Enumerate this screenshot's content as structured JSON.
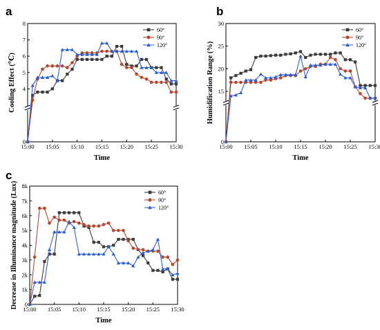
{
  "figure": {
    "panel_labels": [
      "a",
      "b",
      "c"
    ]
  },
  "colors": {
    "s60": "#3a3a3a",
    "s90": "#b5452f",
    "s120": "#2b5fd1"
  },
  "chart_data": [
    {
      "type": "line",
      "panel": "a",
      "title": "",
      "xlabel": "Time",
      "ylabel": "Cooling Effect (℃)",
      "ylim": [
        0,
        8
      ],
      "y_break": "axis break between 0 and 3",
      "yticks": [
        "0",
        "4",
        "5",
        "6",
        "7",
        "8"
      ],
      "ytick_values": [
        0,
        4,
        5,
        6,
        7,
        8
      ],
      "xtick_labels": [
        "15:00",
        "15:05",
        "15:10",
        "15:15",
        "15:20",
        "15:25",
        "15:30"
      ],
      "x": [
        0,
        1,
        2,
        3,
        4,
        5,
        6,
        7,
        8,
        9,
        10,
        11,
        12,
        13,
        14,
        15,
        16,
        17,
        18,
        19,
        20,
        21,
        22,
        23,
        24,
        25,
        26,
        27,
        28,
        29,
        30
      ],
      "legend_position": "top-right",
      "series": [
        {
          "name": "60°",
          "color_key": "s60",
          "marker": "square",
          "values": [
            0,
            3.6,
            3.8,
            3.8,
            3.8,
            4.0,
            4.5,
            4.5,
            4.9,
            5.2,
            5.8,
            5.8,
            5.8,
            5.8,
            5.8,
            5.8,
            6.0,
            6.0,
            6.6,
            6.6,
            5.5,
            5.4,
            5.4,
            5.8,
            5.8,
            5.3,
            5.3,
            5.3,
            4.6,
            4.3,
            4.3
          ]
        },
        {
          "name": "90°",
          "color_key": "s90",
          "marker": "circle",
          "values": [
            0,
            3.3,
            4.6,
            5.2,
            5.4,
            5.4,
            5.4,
            5.4,
            5.3,
            5.6,
            6.0,
            6.2,
            6.2,
            6.2,
            6.2,
            6.3,
            6.3,
            6.3,
            6.3,
            5.5,
            5.3,
            5.3,
            4.9,
            4.7,
            4.6,
            4.4,
            4.4,
            4.4,
            4.4,
            3.8,
            3.8
          ]
        },
        {
          "name": "120°",
          "color_key": "s120",
          "marker": "triangle",
          "values": [
            0,
            4.2,
            4.7,
            4.7,
            4.7,
            4.8,
            4.5,
            6.4,
            6.4,
            6.4,
            6.1,
            6.1,
            6.1,
            6.1,
            6.1,
            6.8,
            6.8,
            6.3,
            6.3,
            6.3,
            6.3,
            6.3,
            6.3,
            5.3,
            5.3,
            5.3,
            5.0,
            5.0,
            5.0,
            4.5,
            4.5
          ]
        }
      ]
    },
    {
      "type": "line",
      "panel": "b",
      "title": "",
      "xlabel": "Time",
      "ylabel": "Humidification Range (%)",
      "ylim": [
        0,
        30
      ],
      "y_break": "axis break between 0 and 13",
      "yticks": [
        "0",
        "15",
        "20",
        "25",
        "30"
      ],
      "ytick_values": [
        0,
        15,
        20,
        25,
        30
      ],
      "xtick_labels": [
        "15:00",
        "15:05",
        "15:10",
        "15:15",
        "15:20",
        "15:25",
        "15:30"
      ],
      "x": [
        0,
        1,
        2,
        3,
        4,
        5,
        6,
        7,
        8,
        9,
        10,
        11,
        12,
        13,
        14,
        15,
        16,
        17,
        18,
        19,
        20,
        21,
        22,
        23,
        24,
        25,
        26,
        27,
        28,
        29,
        30
      ],
      "legend_position": "top-right",
      "series": [
        {
          "name": "60°",
          "color_key": "s60",
          "marker": "square",
          "values": [
            0,
            18,
            18.5,
            19,
            19.5,
            19.8,
            22.5,
            22.8,
            22.8,
            22.9,
            23,
            23,
            23.2,
            23.3,
            23.5,
            23.8,
            22.5,
            23,
            23.2,
            23.2,
            23.2,
            23.2,
            23.5,
            23.5,
            22,
            22,
            21.5,
            16.3,
            16.3,
            16.3,
            16.3
          ]
        },
        {
          "name": "90°",
          "color_key": "s90",
          "marker": "circle",
          "values": [
            0,
            17,
            17,
            17,
            17,
            17,
            17,
            17,
            17.5,
            17.5,
            17.8,
            18,
            18.5,
            18.5,
            18.5,
            19.5,
            20,
            20.5,
            20.5,
            21,
            21,
            22.5,
            22,
            20,
            19.5,
            19.5,
            16,
            14.5,
            13.5,
            13.5,
            13.5
          ]
        },
        {
          "name": "120°",
          "color_key": "s120",
          "marker": "triangle",
          "values": [
            0,
            14,
            14.2,
            14.7,
            17.5,
            17.5,
            17.5,
            18.8,
            18,
            18,
            18.2,
            18.7,
            18.7,
            18.7,
            18.7,
            22.8,
            18.2,
            20.8,
            20.8,
            20.8,
            21,
            21,
            21,
            18.8,
            18,
            18,
            16,
            15.8,
            15.8,
            13.5,
            13.5
          ]
        }
      ]
    },
    {
      "type": "line",
      "panel": "c",
      "title": "",
      "xlabel": "Time",
      "ylabel": "Decrease in Illuminance magnitude (Lux)",
      "ylim": [
        0,
        8000
      ],
      "yticks": [
        "0",
        "1k",
        "2k",
        "3k",
        "4k",
        "5k",
        "6k",
        "7k",
        "8k"
      ],
      "ytick_values": [
        0,
        1000,
        2000,
        3000,
        4000,
        5000,
        6000,
        7000,
        8000
      ],
      "xtick_labels": [
        "15:00",
        "15:05",
        "15:10",
        "15:15",
        "15:20",
        "15:25",
        "15:30"
      ],
      "x": [
        0,
        1,
        2,
        3,
        4,
        5,
        6,
        7,
        8,
        9,
        10,
        11,
        12,
        13,
        14,
        15,
        16,
        17,
        18,
        19,
        20,
        21,
        22,
        23,
        24,
        25,
        26,
        27,
        28,
        29,
        30
      ],
      "legend_position": "top-right",
      "series": [
        {
          "name": "60°",
          "color_key": "s60",
          "marker": "square",
          "values": [
            0,
            550,
            600,
            2900,
            3400,
            3400,
            6200,
            6200,
            6200,
            6200,
            6200,
            5300,
            5200,
            4200,
            4200,
            3900,
            3900,
            4000,
            4400,
            4400,
            4400,
            4400,
            3700,
            3300,
            2800,
            2300,
            2300,
            2200,
            2400,
            1700,
            1700
          ]
        },
        {
          "name": "90°",
          "color_key": "s90",
          "marker": "circle",
          "values": [
            0,
            3200,
            6500,
            6500,
            5500,
            5900,
            5700,
            5700,
            5500,
            5600,
            5500,
            5400,
            5300,
            5300,
            5300,
            5400,
            5500,
            5000,
            5000,
            5000,
            4300,
            3800,
            3700,
            3700,
            3600,
            3600,
            3600,
            3200,
            3200,
            2700,
            3000
          ]
        },
        {
          "name": "120°",
          "color_key": "s120",
          "marker": "triangle",
          "values": [
            0,
            1500,
            1500,
            1500,
            3700,
            4900,
            4900,
            4900,
            5600,
            5200,
            3400,
            3400,
            3400,
            3400,
            3400,
            3400,
            3900,
            3400,
            2800,
            2800,
            2800,
            2600,
            3200,
            3500,
            3600,
            3700,
            4400,
            2400,
            2400,
            2000,
            2100
          ]
        }
      ]
    }
  ]
}
